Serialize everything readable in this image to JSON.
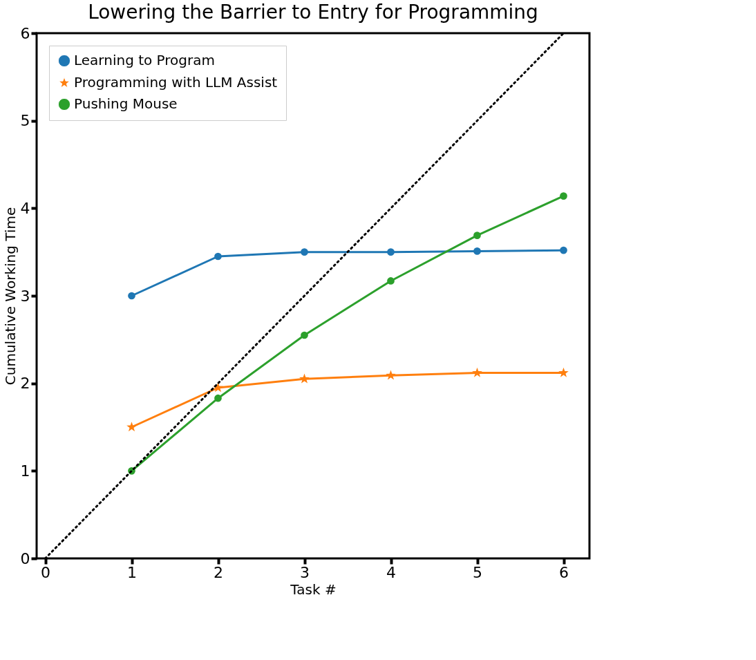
{
  "chart_data": {
    "type": "line",
    "title": "Lowering the Barrier to Entry for Programming",
    "xlabel": "Task #",
    "ylabel": "Cumulative Working Time",
    "x": [
      1,
      2,
      3,
      4,
      5,
      6
    ],
    "series": [
      {
        "name": "Learning to Program",
        "color": "#1f77b4",
        "marker": "circle",
        "values": [
          3.0,
          3.45,
          3.5,
          3.5,
          3.51,
          3.52
        ]
      },
      {
        "name": "Programming with LLM Assist",
        "color": "#ff7f0e",
        "marker": "star",
        "values": [
          1.5,
          1.95,
          2.05,
          2.09,
          2.12,
          2.12
        ]
      },
      {
        "name": "Pushing Mouse",
        "color": "#2ca02c",
        "marker": "circle",
        "values": [
          1.0,
          1.83,
          2.55,
          3.17,
          3.69,
          4.14
        ]
      },
      {
        "type": "line",
        "x": [
          0,
          6
        ],
        "values": [
          0,
          6
        ],
        "color": "#000000",
        "line_style": "dotted",
        "marker": "none"
      }
    ],
    "xlim": [
      -0.1,
      6.3
    ],
    "ylim": [
      0,
      6
    ],
    "xticks": [
      0,
      1,
      2,
      3,
      4,
      5,
      6
    ],
    "yticks": [
      0,
      1,
      2,
      3,
      4,
      5,
      6
    ],
    "grid": false,
    "legend": "top left"
  }
}
